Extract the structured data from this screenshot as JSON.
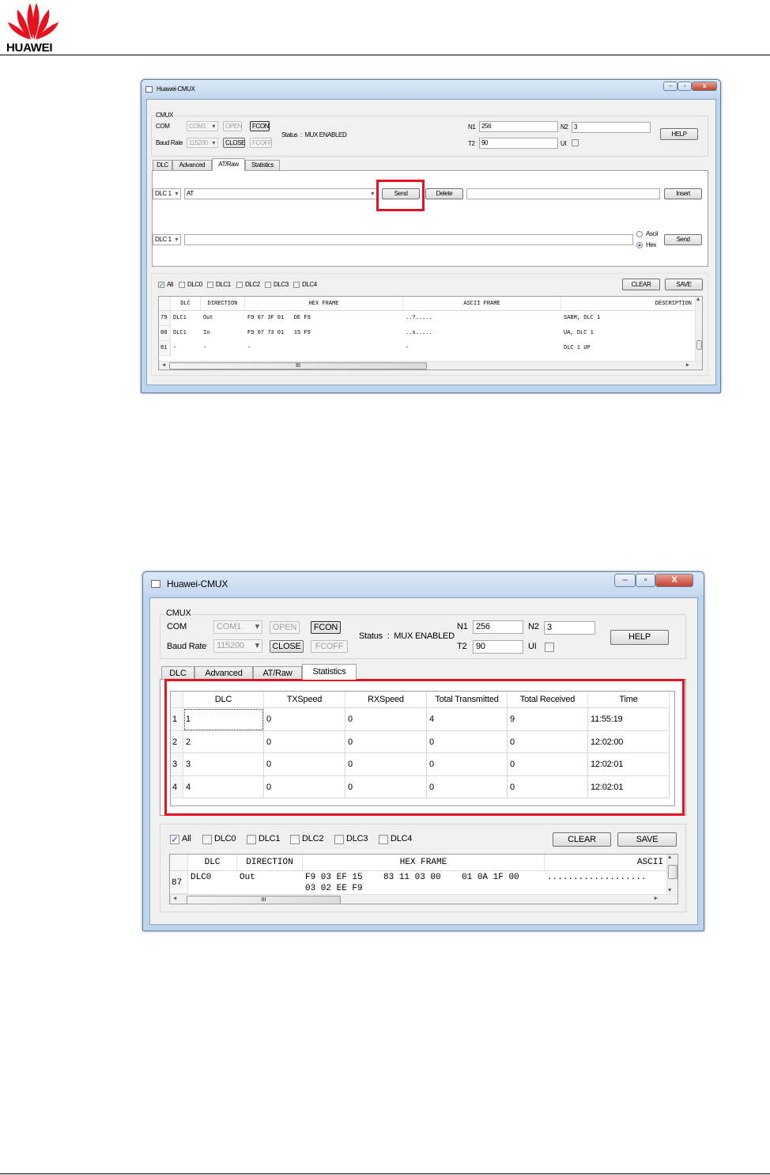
{
  "header": {
    "brand": "HUAWEI",
    "brand_color": "#e3141f"
  },
  "window1": {
    "title": "Huawei-CMUX",
    "group_label": "CMUX",
    "com_label": "COM",
    "com_value": "COM1",
    "baud_label": "Baud Rate",
    "baud_value": "115200",
    "open": "OPEN",
    "fcon": "FCON",
    "close": "CLOSE",
    "fcoff": "FCOFF",
    "status": "Status  :  MUX ENABLED",
    "n1_label": "N1",
    "n1": "256",
    "n2_label": "N2",
    "n2": "3",
    "t2_label": "T2",
    "t2": "90",
    "ui_label": "UI",
    "help": "HELP",
    "tabs": [
      "DLC",
      "Advanced",
      "AT/Raw",
      "Statistics"
    ],
    "active_tab": "AT/Raw",
    "at": {
      "dlc1": "DLC 1",
      "command": "AT",
      "send": "Send",
      "delete": "Delete",
      "insert": "Insert",
      "dlc2": "DLC 1",
      "ascii": "Ascii",
      "hex": "Hex",
      "send2": "Send",
      "selected_mode": "Hex"
    },
    "filters": [
      {
        "label": "All",
        "checked": true
      },
      {
        "label": "DLC0",
        "checked": false
      },
      {
        "label": "DLC1",
        "checked": false
      },
      {
        "label": "DLC2",
        "checked": false
      },
      {
        "label": "DLC3",
        "checked": false
      },
      {
        "label": "DLC4",
        "checked": false
      }
    ],
    "clear": "CLEAR",
    "save": "SAVE",
    "log": {
      "columns": [
        "DLC",
        "DIRECTION",
        "HEX FRAME",
        "ASCII FRAME",
        "DESCRIPTION"
      ],
      "rows": [
        {
          "n": "79",
          "cells": [
            "DLC1",
            "Out",
            "F9 07 3F 01   DE F9",
            "..?.....",
            "SABM, DLC 1"
          ]
        },
        {
          "n": "80",
          "cells": [
            "DLC1",
            "In",
            "F9 07 73 01   15 F9",
            "..s.....",
            "UA, DLC 1"
          ]
        },
        {
          "n": "81",
          "cells": [
            "-",
            "-",
            "-",
            "-",
            "DLC 1 UP"
          ]
        }
      ]
    },
    "scroll_grip": "III"
  },
  "window2": {
    "title": "Huawei-CMUX",
    "group_label": "CMUX",
    "com_label": "COM",
    "com_value": "COM1",
    "baud_label": "Baud Rate",
    "baud_value": "115200",
    "open": "OPEN",
    "fcon": "FCON",
    "close": "CLOSE",
    "fcoff": "FCOFF",
    "status": "Status  :  MUX ENABLED",
    "n1_label": "N1",
    "n1": "256",
    "n2_label": "N2",
    "n2": "3",
    "t2_label": "T2",
    "t2": "90",
    "ui_label": "UI",
    "help": "HELP",
    "tabs": [
      "DLC",
      "Advanced",
      "AT/Raw",
      "Statistics"
    ],
    "active_tab": "Statistics",
    "stats": {
      "columns": [
        "DLC",
        "TXSpeed",
        "RXSpeed",
        "Total Transmitted",
        "Total Received",
        "Time"
      ],
      "rows": [
        {
          "n": "1",
          "cells": [
            "1",
            "0",
            "0",
            "4",
            "9",
            "11:55:19"
          ]
        },
        {
          "n": "2",
          "cells": [
            "2",
            "0",
            "0",
            "0",
            "0",
            "12:02:00"
          ]
        },
        {
          "n": "3",
          "cells": [
            "3",
            "0",
            "0",
            "0",
            "0",
            "12:02:01"
          ]
        },
        {
          "n": "4",
          "cells": [
            "4",
            "0",
            "0",
            "0",
            "0",
            "12:02:01"
          ]
        }
      ]
    },
    "filters": [
      {
        "label": "All",
        "checked": true
      },
      {
        "label": "DLC0",
        "checked": false
      },
      {
        "label": "DLC1",
        "checked": false
      },
      {
        "label": "DLC2",
        "checked": false
      },
      {
        "label": "DLC3",
        "checked": false
      },
      {
        "label": "DLC4",
        "checked": false
      }
    ],
    "clear": "CLEAR",
    "save": "SAVE",
    "log": {
      "columns": [
        "DLC",
        "DIRECTION",
        "HEX FRAME",
        "ASCII"
      ],
      "rows": [
        {
          "n": "87",
          "cells": [
            "DLC0",
            "Out",
            "F9 03 EF 15    83 11 03 00    01 0A 1F 00\n03 02 EE F9",
            "..................."
          ]
        }
      ]
    },
    "scroll_grip": "III"
  }
}
